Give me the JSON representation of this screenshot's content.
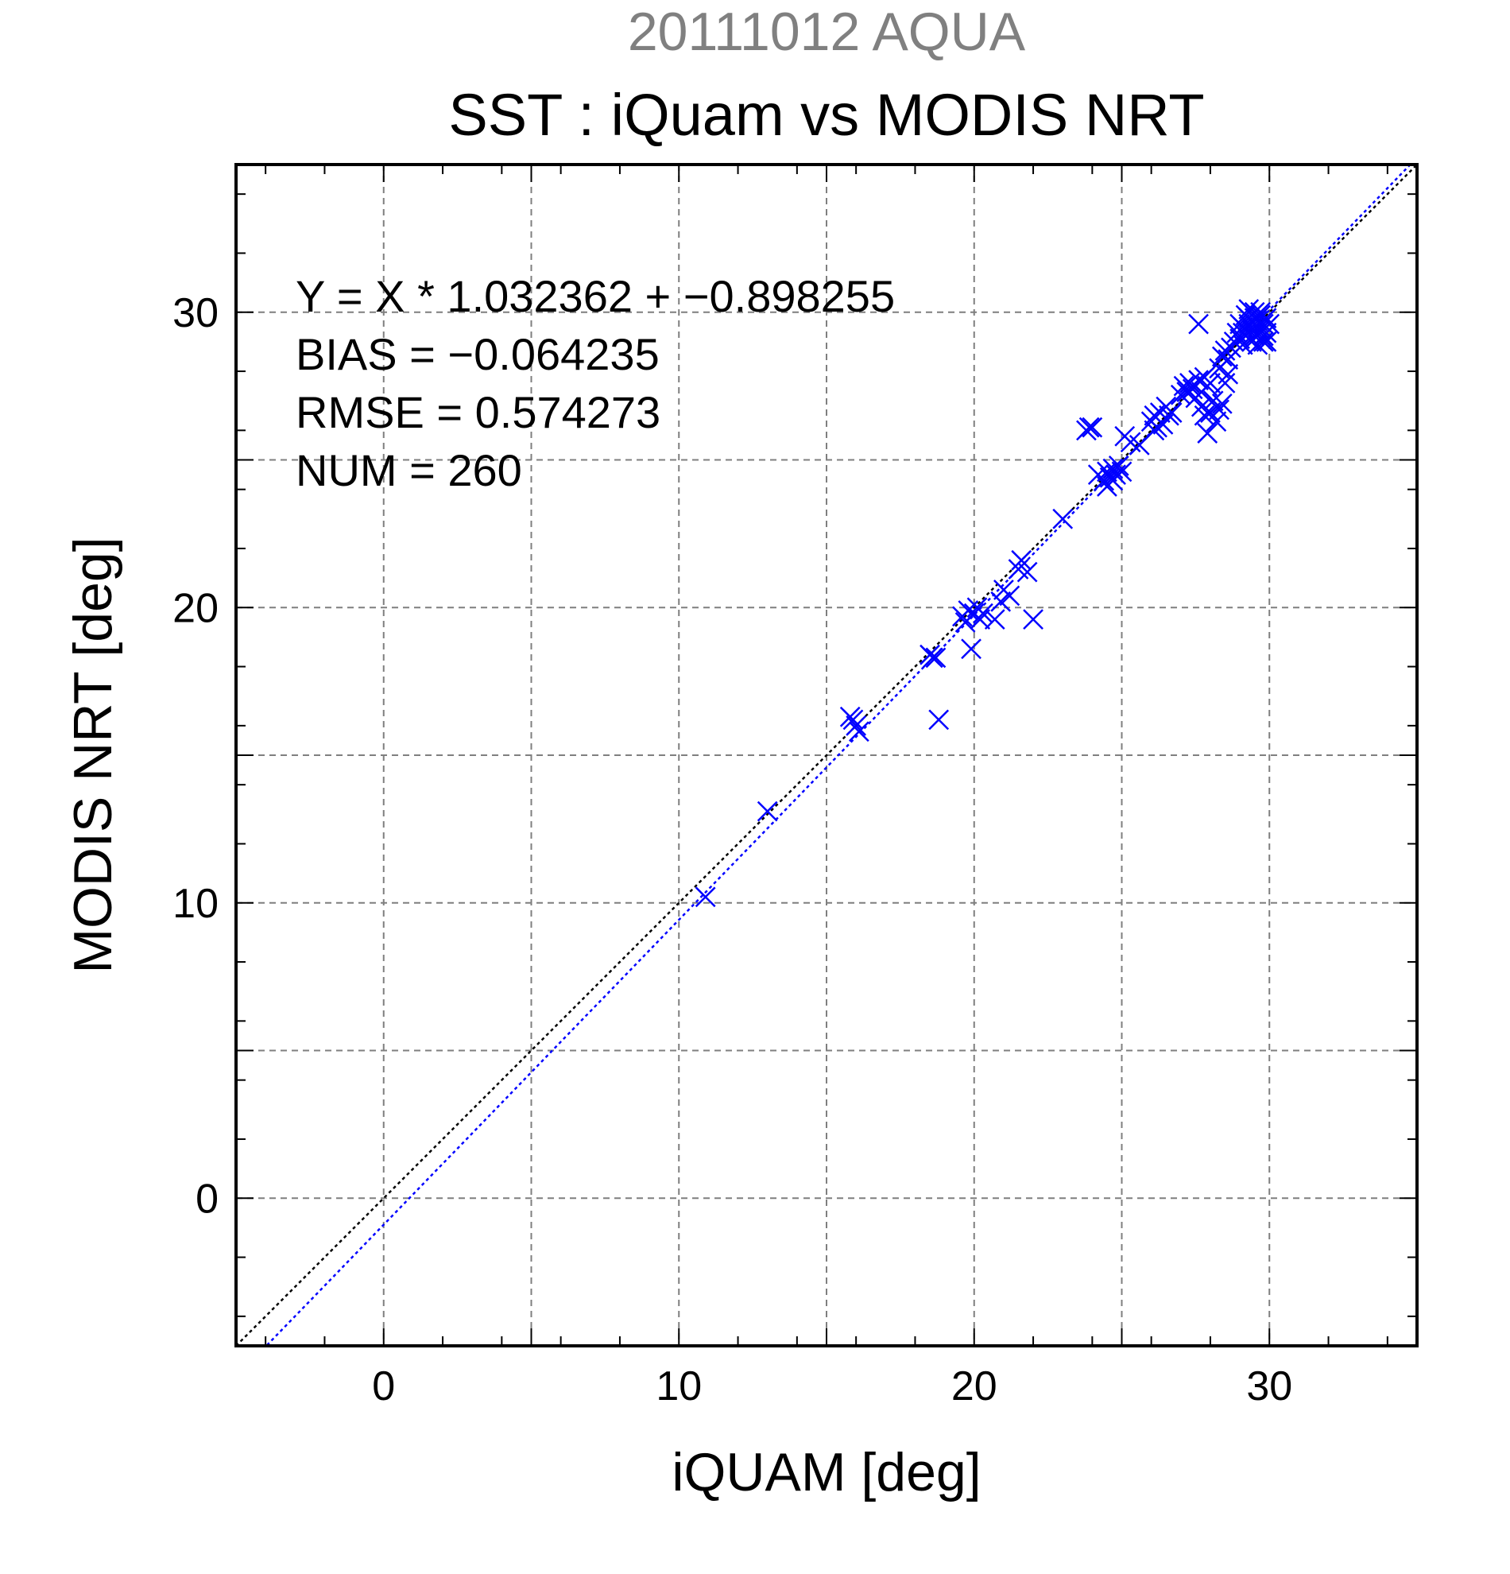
{
  "chart_data": {
    "type": "scatter",
    "supertitle": "20111012 AQUA",
    "title": "SST : iQuam vs MODIS NRT",
    "xlabel": "iQUAM [deg]",
    "ylabel": "MODIS NRT [deg]",
    "xlim": [
      -5,
      35
    ],
    "ylim": [
      -5,
      35
    ],
    "xticks": [
      "0",
      "10",
      "20",
      "30"
    ],
    "yticks": [
      "0",
      "10",
      "20",
      "30"
    ],
    "grid": true,
    "marker": "x",
    "colors": {
      "points": "#0000ff",
      "fit_line": "#0000ff",
      "identity_line": "#000000",
      "supertitle": "#808080"
    },
    "stats": [
      "Y = X * 1.032362 + −0.898255",
      "BIAS = −0.064235",
      "RMSE = 0.574273",
      "NUM = 260"
    ],
    "lines": [
      {
        "name": "1:1",
        "slope": 1,
        "intercept": 0,
        "style": "dotted",
        "color": "#000000"
      },
      {
        "name": "fit",
        "slope": 1.032362,
        "intercept": -0.898255,
        "style": "dotted",
        "color": "#0000ff"
      }
    ],
    "points": [
      [
        10.9,
        10.2
      ],
      [
        13.0,
        13.1
      ],
      [
        15.8,
        16.3
      ],
      [
        16.0,
        16.0
      ],
      [
        16.1,
        15.8
      ],
      [
        15.9,
        16.2
      ],
      [
        18.5,
        18.4
      ],
      [
        18.7,
        18.3
      ],
      [
        18.8,
        16.2
      ],
      [
        18.6,
        18.3
      ],
      [
        19.6,
        19.7
      ],
      [
        19.8,
        19.9
      ],
      [
        19.9,
        18.6
      ],
      [
        20.0,
        19.8
      ],
      [
        20.2,
        19.6
      ],
      [
        20.1,
        20.0
      ],
      [
        19.7,
        19.5
      ],
      [
        20.3,
        19.8
      ],
      [
        20.7,
        19.6
      ],
      [
        20.9,
        20.2
      ],
      [
        21.0,
        20.6
      ],
      [
        21.2,
        20.4
      ],
      [
        21.5,
        21.3
      ],
      [
        21.6,
        21.6
      ],
      [
        21.8,
        21.2
      ],
      [
        22.0,
        19.6
      ],
      [
        23.0,
        23.0
      ],
      [
        23.9,
        26.1
      ],
      [
        23.8,
        26.0
      ],
      [
        24.0,
        26.1
      ],
      [
        24.2,
        24.5
      ],
      [
        24.4,
        24.3
      ],
      [
        24.5,
        24.6
      ],
      [
        24.6,
        24.4
      ],
      [
        24.7,
        24.7
      ],
      [
        24.8,
        24.5
      ],
      [
        24.9,
        24.8
      ],
      [
        25.0,
        24.6
      ],
      [
        24.5,
        24.1
      ],
      [
        24.7,
        24.3
      ],
      [
        25.1,
        25.8
      ],
      [
        25.3,
        25.6
      ],
      [
        25.6,
        25.5
      ],
      [
        26.0,
        26.3
      ],
      [
        26.1,
        26.5
      ],
      [
        26.2,
        26.1
      ],
      [
        26.3,
        26.6
      ],
      [
        26.4,
        26.2
      ],
      [
        26.5,
        26.8
      ],
      [
        26.6,
        26.5
      ],
      [
        26.1,
        26.0
      ],
      [
        26.7,
        26.6
      ],
      [
        27.0,
        27.2
      ],
      [
        27.1,
        27.5
      ],
      [
        27.2,
        27.3
      ],
      [
        27.3,
        27.6
      ],
      [
        27.4,
        27.4
      ],
      [
        27.5,
        27.1
      ],
      [
        27.6,
        27.7
      ],
      [
        27.7,
        27.3
      ],
      [
        27.8,
        27.8
      ],
      [
        27.9,
        27.5
      ],
      [
        27.6,
        29.6
      ],
      [
        27.7,
        26.8
      ],
      [
        27.8,
        26.5
      ],
      [
        27.9,
        25.9
      ],
      [
        28.0,
        26.6
      ],
      [
        28.1,
        27.0
      ],
      [
        28.2,
        26.3
      ],
      [
        28.3,
        26.7
      ],
      [
        28.4,
        26.9
      ],
      [
        28.0,
        27.6
      ],
      [
        28.3,
        28.1
      ],
      [
        28.4,
        28.5
      ],
      [
        28.5,
        28.7
      ],
      [
        28.6,
        28.4
      ],
      [
        28.7,
        28.8
      ],
      [
        28.8,
        29.0
      ],
      [
        28.9,
        29.3
      ],
      [
        28.6,
        27.9
      ],
      [
        28.5,
        27.6
      ],
      [
        29.0,
        29.1
      ],
      [
        29.1,
        29.5
      ],
      [
        29.2,
        29.2
      ],
      [
        29.3,
        29.6
      ],
      [
        29.4,
        29.4
      ],
      [
        29.5,
        29.8
      ],
      [
        29.6,
        29.5
      ],
      [
        29.7,
        29.9
      ],
      [
        29.8,
        29.6
      ],
      [
        29.9,
        29.8
      ],
      [
        29.1,
        28.9
      ],
      [
        29.2,
        29.9
      ],
      [
        29.3,
        30.1
      ],
      [
        29.4,
        29.0
      ],
      [
        29.5,
        29.2
      ],
      [
        29.6,
        29.7
      ],
      [
        29.7,
        29.4
      ],
      [
        29.8,
        29.2
      ],
      [
        29.9,
        29.3
      ],
      [
        29.0,
        29.6
      ],
      [
        29.3,
        29.8
      ],
      [
        29.5,
        30.0
      ],
      [
        29.6,
        28.9
      ],
      [
        29.8,
        29.0
      ],
      [
        29.4,
        29.7
      ],
      [
        29.2,
        29.4
      ],
      [
        29.7,
        30.0
      ],
      [
        29.9,
        29.0
      ],
      [
        30.0,
        29.6
      ],
      [
        29.1,
        29.3
      ]
    ]
  }
}
